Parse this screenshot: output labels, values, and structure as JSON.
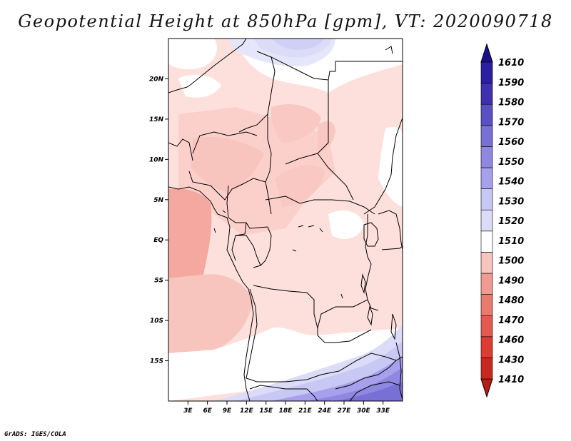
{
  "title": "Geopotential Height at 850hPa [gpm], VT: 2020090718",
  "footer": "GrADS: IGES/COLA",
  "map": {
    "lon_range": [
      0,
      36
    ],
    "lat_range": [
      -20,
      25
    ],
    "x_ticks": [
      "3E",
      "6E",
      "9E",
      "12E",
      "15E",
      "18E",
      "21E",
      "24E",
      "27E",
      "30E",
      "33E"
    ],
    "x_tick_values": [
      3,
      6,
      9,
      12,
      15,
      18,
      21,
      24,
      27,
      30,
      33
    ],
    "y_ticks": [
      "20N",
      "15N",
      "10N",
      "5N",
      "EQ",
      "5S",
      "10S",
      "15S"
    ],
    "y_tick_values": [
      20,
      15,
      10,
      5,
      0,
      -5,
      -10,
      -15
    ]
  },
  "colorbar": {
    "levels": [
      "1410",
      "1430",
      "1460",
      "1470",
      "1480",
      "1490",
      "1500",
      "1510",
      "1520",
      "1530",
      "1540",
      "1550",
      "1560",
      "1570",
      "1580",
      "1590",
      "1610"
    ],
    "colors": [
      "#b41e14",
      "#c8281e",
      "#dc3c32",
      "#e25a50",
      "#e87a70",
      "#f09a92",
      "#f8c4be",
      "#ffffff",
      "#dcdcf8",
      "#c8c8f4",
      "#a8a0ec",
      "#9088e0",
      "#7870d4",
      "#5a50c4",
      "#4030b0",
      "#2c1ea0",
      "#1c0f8c"
    ]
  }
}
